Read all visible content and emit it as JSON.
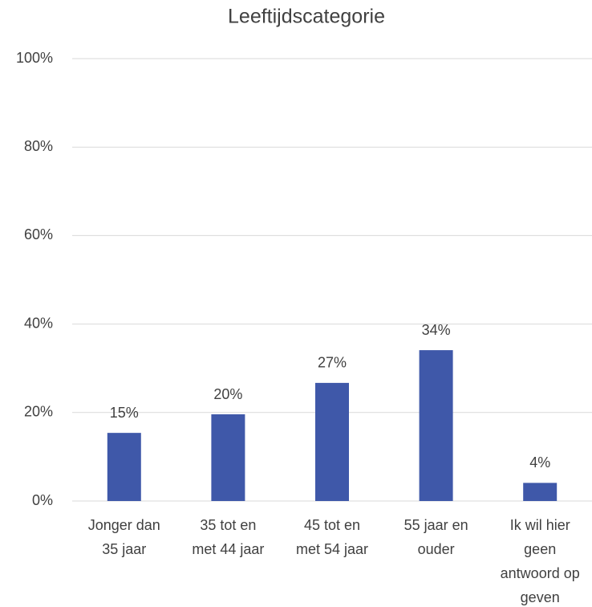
{
  "chart_data": {
    "type": "bar",
    "title": "Leeftijdscategorie",
    "categories": [
      "Jonger dan\n35 jaar",
      "35 tot en\nmet 44 jaar",
      "45 tot en\nmet 54 jaar",
      "55 jaar en\nouder",
      "Ik wil hier\ngeen\nantwoord op\ngeven"
    ],
    "values": [
      15.4,
      19.6,
      26.7,
      34.1,
      4.1
    ],
    "value_labels": [
      "15%",
      "20%",
      "27%",
      "34%",
      "4%"
    ],
    "color": "#3f58a9",
    "ylim": [
      0,
      100
    ],
    "yticks": [
      {
        "value": 0,
        "label": "0%"
      },
      {
        "value": 20,
        "label": "20%"
      },
      {
        "value": 40,
        "label": "40%"
      },
      {
        "value": 60,
        "label": "60%"
      },
      {
        "value": 80,
        "label": "80%"
      },
      {
        "value": 100,
        "label": "100%"
      }
    ],
    "grid": true
  }
}
